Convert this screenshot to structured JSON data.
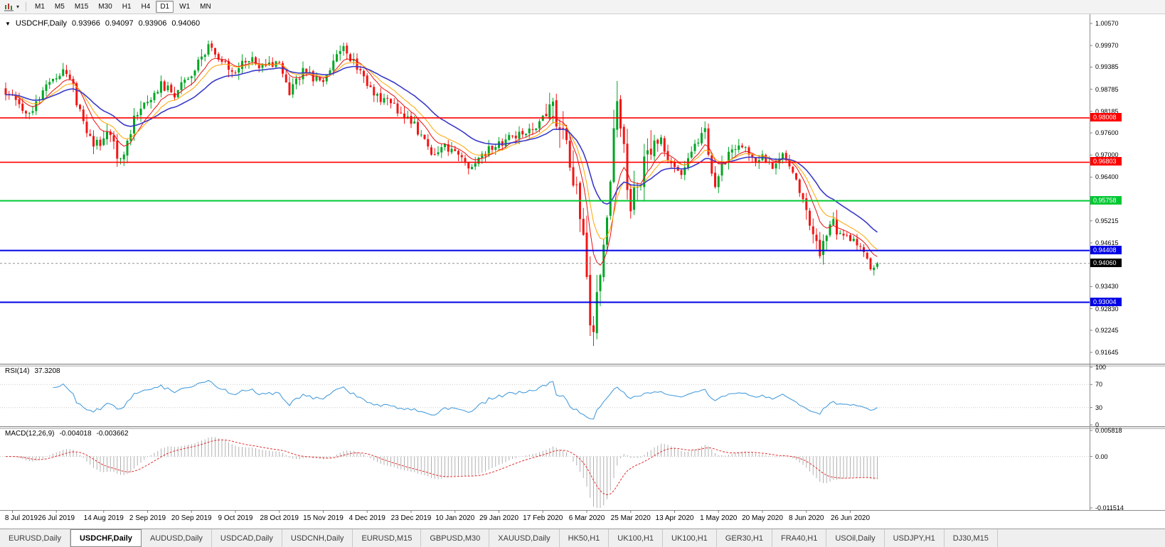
{
  "icons": {
    "chart_marker": "▼",
    "toolbar_caret": "▾"
  },
  "toolbar": {
    "timeframes": [
      {
        "label": "M1",
        "active": false
      },
      {
        "label": "M5",
        "active": false
      },
      {
        "label": "M15",
        "active": false
      },
      {
        "label": "M30",
        "active": false
      },
      {
        "label": "H1",
        "active": false
      },
      {
        "label": "H4",
        "active": false
      },
      {
        "label": "D1",
        "active": true
      },
      {
        "label": "W1",
        "active": false
      },
      {
        "label": "MN",
        "active": false
      }
    ]
  },
  "chart_header": {
    "symbol": "USDCHF,Daily",
    "open": "0.93966",
    "high": "0.94097",
    "low": "0.93906",
    "close": "0.94060"
  },
  "price_axis": {
    "labels": [
      {
        "text": "1.00570",
        "value": 1.0057
      },
      {
        "text": "0.99970",
        "value": 0.9997
      },
      {
        "text": "0.99385",
        "value": 0.99385
      },
      {
        "text": "0.98785",
        "value": 0.98785
      },
      {
        "text": "0.98185",
        "value": 0.98185
      },
      {
        "text": "0.97600",
        "value": 0.976
      },
      {
        "text": "0.97000",
        "value": 0.97
      },
      {
        "text": "0.96400",
        "value": 0.964
      },
      {
        "text": "0.95215",
        "value": 0.95215
      },
      {
        "text": "0.94615",
        "value": 0.94615
      },
      {
        "text": "0.93430",
        "value": 0.9343
      },
      {
        "text": "0.92830",
        "value": 0.9283
      },
      {
        "text": "0.92245",
        "value": 0.92245
      },
      {
        "text": "0.91645",
        "value": 0.91645
      }
    ]
  },
  "hlines": [
    {
      "value": 0.98008,
      "label": "0.98008",
      "color": "#FF0000",
      "thickness": 1.6
    },
    {
      "value": 0.96803,
      "label": "0.96803",
      "color": "#FF0000",
      "thickness": 1.6
    },
    {
      "value": 0.95758,
      "label": "0.95758",
      "color": "#00C832",
      "thickness": 2
    },
    {
      "value": 0.94408,
      "label": "0.94408",
      "color": "#0000E6",
      "thickness": 2
    },
    {
      "value": 0.93004,
      "label": "0.93004",
      "color": "#0000E6",
      "thickness": 2
    }
  ],
  "current_price": {
    "value": 0.9406,
    "label": "0.94060",
    "color": "#000000"
  },
  "rsi_panel": {
    "title": "RSI(14)",
    "value": "37.3208",
    "line_color": "#4A9EDD",
    "levels": [
      {
        "text": "100",
        "value": 100
      },
      {
        "text": "70",
        "value": 70
      },
      {
        "text": "30",
        "value": 30
      },
      {
        "text": "0",
        "value": 0
      }
    ]
  },
  "macd_panel": {
    "title": "MACD(12,26,9)",
    "main_value": "-0.004018",
    "signal_value": "-0.003662",
    "range": {
      "max": 0.005818,
      "min": -0.011514
    },
    "axis_labels": [
      {
        "text": "0.005818",
        "value": 0.005818
      },
      {
        "text": "0.00",
        "value": 0
      },
      {
        "text": "-0.011514",
        "value": -0.011514
      }
    ]
  },
  "time_axis": {
    "ticks": [
      {
        "label": "8 Jul 2019",
        "index": 2
      },
      {
        "label": "26 Jul 2019",
        "index": 15
      },
      {
        "label": "14 Aug 2019",
        "index": 29
      },
      {
        "label": "2 Sep 2019",
        "index": 42
      },
      {
        "label": "20 Sep 2019",
        "index": 55
      },
      {
        "label": "9 Oct 2019",
        "index": 68
      },
      {
        "label": "28 Oct 2019",
        "index": 81
      },
      {
        "label": "15 Nov 2019",
        "index": 94
      },
      {
        "label": "4 Dec 2019",
        "index": 107
      },
      {
        "label": "23 Dec 2019",
        "index": 120
      },
      {
        "label": "10 Jan 2020",
        "index": 133
      },
      {
        "label": "29 Jan 2020",
        "index": 146
      },
      {
        "label": "17 Feb 2020",
        "index": 159
      },
      {
        "label": "6 Mar 2020",
        "index": 172
      },
      {
        "label": "25 Mar 2020",
        "index": 185
      },
      {
        "label": "13 Apr 2020",
        "index": 198
      },
      {
        "label": "1 May 2020",
        "index": 211
      },
      {
        "label": "20 May 2020",
        "index": 224
      },
      {
        "label": "8 Jun 2020",
        "index": 237
      },
      {
        "label": "26 Jun 2020",
        "index": 250
      }
    ]
  },
  "tabs": [
    {
      "label": "EURUSD,Daily",
      "active": false
    },
    {
      "label": "USDCHF,Daily",
      "active": true
    },
    {
      "label": "AUDUSD,Daily",
      "active": false
    },
    {
      "label": "USDCAD,Daily",
      "active": false
    },
    {
      "label": "USDCNH,Daily",
      "active": false
    },
    {
      "label": "EURUSD,M15",
      "active": false
    },
    {
      "label": "GBPUSD,M30",
      "active": false
    },
    {
      "label": "XAUUSD,Daily",
      "active": false
    },
    {
      "label": "HK50,H1",
      "active": false
    },
    {
      "label": "UK100,H1",
      "active": false
    },
    {
      "label": "UK100,H1",
      "active": false
    },
    {
      "label": "GER30,H1",
      "active": false
    },
    {
      "label": "FRA40,H1",
      "active": false
    },
    {
      "label": "USOil,Daily",
      "active": false
    },
    {
      "label": "USDJPY,H1",
      "active": false
    },
    {
      "label": "DJ30,M15",
      "active": false
    }
  ],
  "chart_data": {
    "type": "candlestick",
    "symbol": "USDCHF",
    "timeframe": "Daily",
    "bars": 259,
    "price_range": {
      "top": 1.0082,
      "bottom": 0.91337
    },
    "up_color": "#00A524",
    "down_color": "#F21616",
    "last_bar": {
      "open": 0.93966,
      "high": 0.94097,
      "low": 0.93906,
      "close": 0.9406
    },
    "close_path_anchors": [
      [
        0,
        0.9872
      ],
      [
        4,
        0.9838
      ],
      [
        7,
        0.9818
      ],
      [
        11,
        0.9868
      ],
      [
        15,
        0.9915
      ],
      [
        17,
        0.9932
      ],
      [
        20,
        0.9878
      ],
      [
        24,
        0.9765
      ],
      [
        26,
        0.9718
      ],
      [
        30,
        0.9762
      ],
      [
        34,
        0.9682
      ],
      [
        38,
        0.98
      ],
      [
        42,
        0.9846
      ],
      [
        46,
        0.9892
      ],
      [
        50,
        0.9868
      ],
      [
        55,
        0.9918
      ],
      [
        60,
        0.9993
      ],
      [
        63,
        0.9952
      ],
      [
        68,
        0.993
      ],
      [
        72,
        0.9966
      ],
      [
        76,
        0.9936
      ],
      [
        81,
        0.9956
      ],
      [
        84,
        0.9874
      ],
      [
        88,
        0.993
      ],
      [
        94,
        0.9892
      ],
      [
        99,
        0.9993
      ],
      [
        103,
        0.9958
      ],
      [
        107,
        0.9882
      ],
      [
        111,
        0.9852
      ],
      [
        115,
        0.9832
      ],
      [
        120,
        0.9792
      ],
      [
        124,
        0.9736
      ],
      [
        127,
        0.97
      ],
      [
        130,
        0.9722
      ],
      [
        133,
        0.9714
      ],
      [
        137,
        0.9666
      ],
      [
        141,
        0.97
      ],
      [
        146,
        0.9732
      ],
      [
        150,
        0.9748
      ],
      [
        154,
        0.9762
      ],
      [
        158,
        0.9788
      ],
      [
        161,
        0.984
      ],
      [
        164,
        0.978
      ],
      [
        167,
        0.9672
      ],
      [
        170,
        0.9556
      ],
      [
        172,
        0.938
      ],
      [
        173,
        0.9268
      ],
      [
        174,
        0.9215
      ],
      [
        175,
        0.931
      ],
      [
        177,
        0.948
      ],
      [
        179,
        0.964
      ],
      [
        181,
        0.9848
      ],
      [
        183,
        0.9712
      ],
      [
        185,
        0.9562
      ],
      [
        188,
        0.9652
      ],
      [
        191,
        0.97
      ],
      [
        194,
        0.9742
      ],
      [
        197,
        0.9668
      ],
      [
        200,
        0.9656
      ],
      [
        204,
        0.9736
      ],
      [
        207,
        0.9762
      ],
      [
        210,
        0.9612
      ],
      [
        214,
        0.9712
      ],
      [
        218,
        0.9722
      ],
      [
        221,
        0.9688
      ],
      [
        224,
        0.9702
      ],
      [
        227,
        0.9662
      ],
      [
        230,
        0.9712
      ],
      [
        233,
        0.9642
      ],
      [
        237,
        0.9562
      ],
      [
        239,
        0.9478
      ],
      [
        241,
        0.9422
      ],
      [
        243,
        0.9482
      ],
      [
        245,
        0.9512
      ],
      [
        247,
        0.9492
      ],
      [
        250,
        0.9476
      ],
      [
        252,
        0.9462
      ],
      [
        254,
        0.9432
      ],
      [
        256,
        0.9402
      ],
      [
        257,
        0.9386
      ],
      [
        258,
        0.9406
      ]
    ],
    "base_volatility": 0.003,
    "volatility_zones": [
      {
        "from": 20,
        "to": 40,
        "amp": 0.004
      },
      {
        "from": 55,
        "to": 70,
        "amp": 0.0035
      },
      {
        "from": 95,
        "to": 126,
        "amp": 0.0032
      },
      {
        "from": 160,
        "to": 193,
        "amp": 0.0085
      },
      {
        "from": 205,
        "to": 216,
        "amp": 0.004
      },
      {
        "from": 236,
        "to": 246,
        "amp": 0.0048
      }
    ],
    "overrides": {
      "174": {
        "low": 0.9182
      },
      "181": {
        "high": 0.9901
      },
      "258": {
        "open": 0.93966,
        "high": 0.94097,
        "low": 0.93906,
        "close": 0.9406
      }
    },
    "moving_averages": [
      {
        "period": 8,
        "color": "#E81010",
        "width": 1
      },
      {
        "period": 13,
        "color": "#FFA500",
        "width": 1
      },
      {
        "period": 26,
        "color": "#3A3AC8",
        "width": 1.6
      }
    ],
    "horizontal_line_values": [
      0.98008,
      0.96803,
      0.95758,
      0.94408,
      0.93004
    ],
    "rsi": {
      "period": 14,
      "current": 37.3208
    },
    "macd": {
      "fast": 12,
      "slow": 26,
      "signal_period": 9,
      "current_main": -0.004018,
      "current_signal": -0.003662
    }
  }
}
